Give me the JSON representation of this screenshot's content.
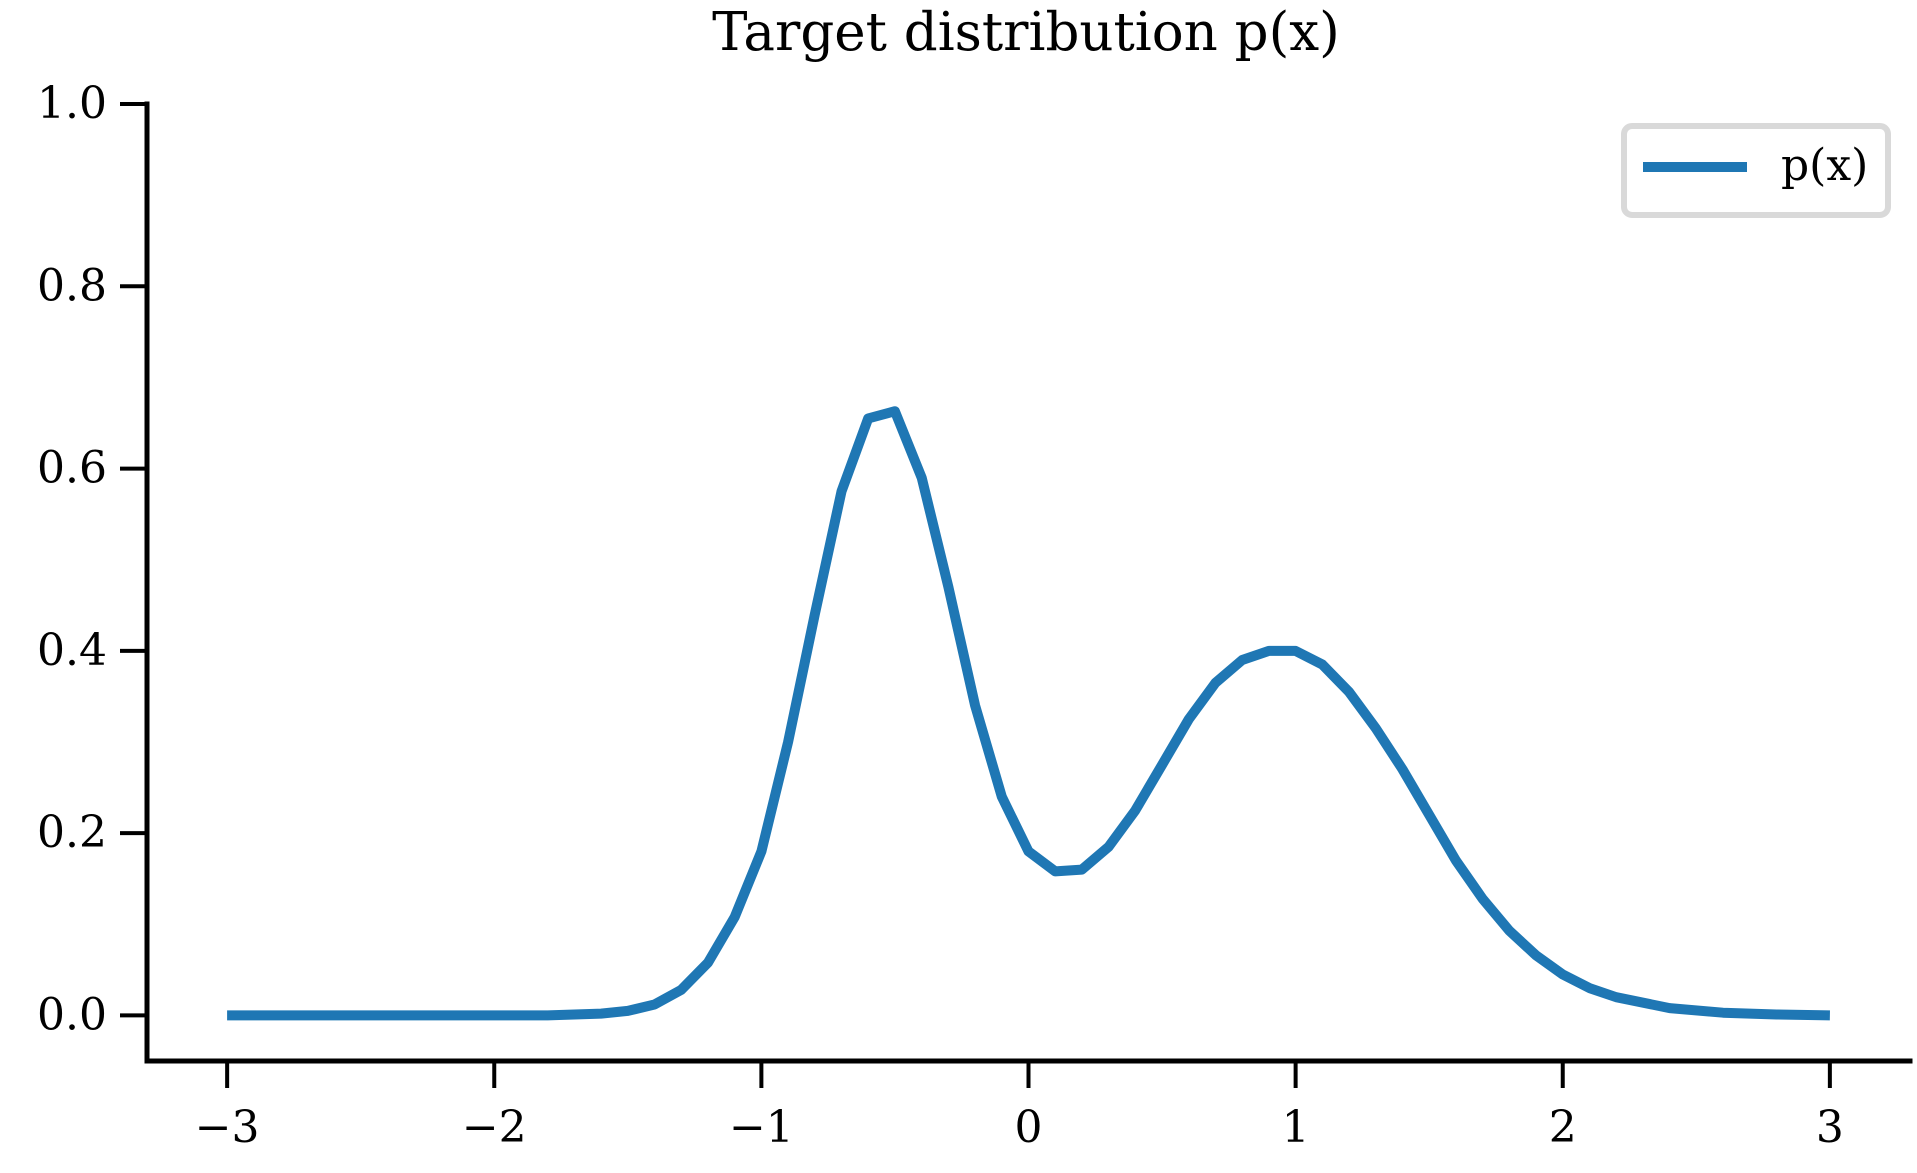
{
  "chart_data": {
    "type": "line",
    "title": "Target distribution p(x)",
    "xlabel": "",
    "ylabel": "",
    "xlim": [
      -3.3,
      3.3
    ],
    "ylim": [
      -0.05,
      1.0
    ],
    "x_ticks": [
      -3,
      -2,
      -1,
      0,
      1,
      2,
      3
    ],
    "x_tick_labels": [
      "−3",
      "−2",
      "−1",
      "0",
      "1",
      "2",
      "3"
    ],
    "y_ticks": [
      0.0,
      0.2,
      0.4,
      0.6,
      0.8,
      1.0
    ],
    "y_tick_labels": [
      "0.0",
      "0.2",
      "0.4",
      "0.6",
      "0.8",
      "1.0"
    ],
    "grid": false,
    "legend": {
      "placement": "top-right",
      "entries": [
        "p(x)"
      ]
    },
    "colors": {
      "series": "#1f77b4",
      "axis": "#000000",
      "legend_border": "#d9d9d9"
    },
    "series": [
      {
        "name": "p(x)",
        "x": [
          -3.0,
          -2.8,
          -2.6,
          -2.4,
          -2.2,
          -2.0,
          -1.8,
          -1.6,
          -1.5,
          -1.4,
          -1.3,
          -1.2,
          -1.1,
          -1.0,
          -0.9,
          -0.8,
          -0.7,
          -0.6,
          -0.5,
          -0.4,
          -0.3,
          -0.2,
          -0.1,
          0.0,
          0.1,
          0.2,
          0.3,
          0.4,
          0.5,
          0.6,
          0.7,
          0.8,
          0.9,
          1.0,
          1.1,
          1.2,
          1.3,
          1.4,
          1.5,
          1.6,
          1.7,
          1.8,
          1.9,
          2.0,
          2.1,
          2.2,
          2.4,
          2.6,
          2.8,
          3.0
        ],
        "y": [
          0.0,
          0.0,
          0.0,
          0.0,
          0.0,
          0.0,
          0.0,
          0.002,
          0.005,
          0.012,
          0.028,
          0.058,
          0.108,
          0.18,
          0.3,
          0.44,
          0.575,
          0.655,
          0.663,
          0.59,
          0.47,
          0.34,
          0.24,
          0.18,
          0.158,
          0.16,
          0.185,
          0.225,
          0.275,
          0.325,
          0.365,
          0.39,
          0.4,
          0.4,
          0.385,
          0.355,
          0.315,
          0.27,
          0.22,
          0.17,
          0.128,
          0.093,
          0.066,
          0.045,
          0.03,
          0.02,
          0.008,
          0.003,
          0.001,
          0.0
        ]
      }
    ]
  }
}
